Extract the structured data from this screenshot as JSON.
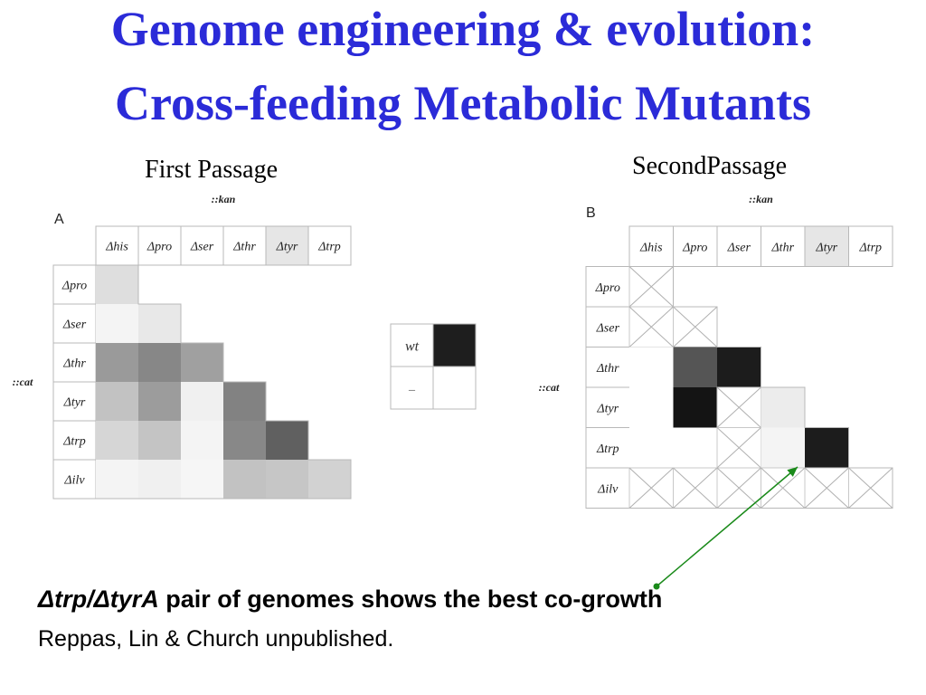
{
  "title": {
    "line1": "Genome engineering & evolution:",
    "line2": "Cross-feeding Metabolic Mutants"
  },
  "passages": {
    "first": "First Passage",
    "second": "SecondPassage"
  },
  "panel_a": {
    "letter": "A",
    "column_group_label": "::kan",
    "row_group_label": "::cat",
    "columns": [
      "Δhis",
      "Δpro",
      "Δser",
      "Δthr",
      "Δtyr",
      "Δtrp"
    ],
    "rows": [
      "Δpro",
      "Δser",
      "Δthr",
      "Δtyr",
      "Δtrp",
      "Δilv"
    ],
    "cells": [
      [
        "#dedede",
        null,
        null,
        null,
        null,
        null
      ],
      [
        "#f4f4f4",
        "#e8e8e8",
        null,
        null,
        null,
        null
      ],
      [
        "#9a9a9a",
        "#878787",
        "#a0a0a0",
        null,
        null,
        null
      ],
      [
        "#c2c2c2",
        "#9c9c9c",
        "#f0f0f0",
        "#828282",
        null,
        null
      ],
      [
        "#d6d6d6",
        "#c4c4c4",
        "#f4f4f4",
        "#888888",
        "#606060",
        null
      ],
      [
        "#f4f4f4",
        "#f0f0f0",
        "#f6f6f6",
        "#c2c2c2",
        "#c6c6c6",
        "#d2d2d2"
      ]
    ]
  },
  "legend": {
    "wt_label": "wt",
    "minus_label": "–",
    "wt_color": "#1e1e1e"
  },
  "panel_b": {
    "letter": "B",
    "column_group_label": "::kan",
    "row_group_label": "::cat",
    "columns": [
      "Δhis",
      "Δpro",
      "Δser",
      "Δthr",
      "Δtyr",
      "Δtrp"
    ],
    "rows": [
      "Δpro",
      "Δser",
      "Δthr",
      "Δtyr",
      "Δtrp",
      "Δilv"
    ],
    "cells": [
      [
        "x",
        null,
        null,
        null,
        null,
        null
      ],
      [
        "x",
        "x",
        null,
        null,
        null,
        null
      ],
      [
        "w",
        "#555555",
        "#1c1c1c",
        null,
        null,
        null
      ],
      [
        "w",
        "#141414",
        "x",
        "#ececec",
        null,
        null
      ],
      [
        "w",
        "w",
        "x",
        "#f4f4f4",
        "#1c1c1c",
        null
      ],
      [
        "x",
        "x",
        "x",
        "x",
        "x",
        "x"
      ]
    ]
  },
  "caption": {
    "emph": "Δtrp/ΔtyrA",
    "rest": " pair of genomes shows the best co-growth",
    "credit": "Reppas, Lin & Church unpublished."
  },
  "colors": {
    "title": "#2b2bd8",
    "arrow": "#1a8a1a",
    "grid": "#b8b8b8"
  }
}
